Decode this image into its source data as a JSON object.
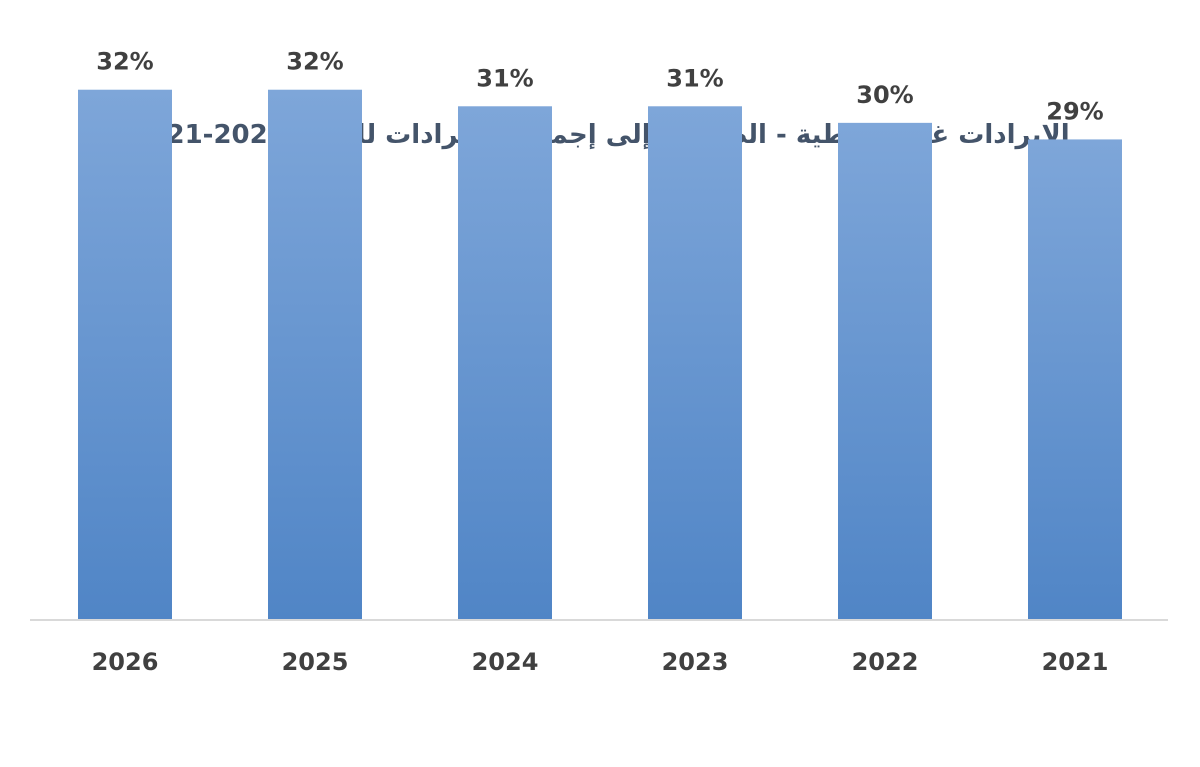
{
  "chart_data": {
    "type": "bar",
    "title": "الإيرادات غير النفطية - الضريبية إلى إجمالي الإيرادات للفترة 2026-2021",
    "xlabel": "",
    "ylabel": "",
    "categories": [
      "2026",
      "2025",
      "2024",
      "2023",
      "2022",
      "2021"
    ],
    "values": [
      32,
      32,
      31,
      31,
      30,
      29
    ],
    "value_labels": [
      "32%",
      "32%",
      "31%",
      "31%",
      "30%",
      "29%"
    ],
    "value_suffix": "%",
    "ylim": [
      0,
      35
    ],
    "grid": false,
    "legend": "none",
    "bar_color_top": "#7ea6d9",
    "bar_color_bottom": "#5085c6"
  }
}
